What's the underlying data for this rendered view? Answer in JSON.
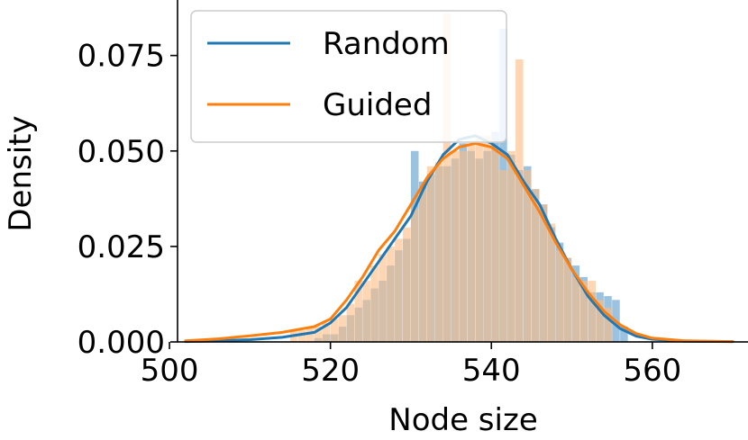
{
  "chart_data": {
    "type": "histogram+kde",
    "xlabel": "Node size",
    "ylabel": "Density",
    "xlim": [
      501,
      572
    ],
    "ylim": [
      0,
      0.09
    ],
    "xticks": [
      500,
      520,
      540,
      560
    ],
    "yticks": [
      0.0,
      0.025,
      0.05,
      0.075
    ],
    "xtick_labels": [
      "500",
      "520",
      "540",
      "560"
    ],
    "ytick_labels": [
      "0.000",
      "0.025",
      "0.050",
      "0.075"
    ],
    "legend": {
      "position": "top-left"
    },
    "bin_width": 1,
    "series": [
      {
        "name": "Random",
        "color": "#1f77b4",
        "hist_color": "#7aafd6",
        "bin_starts": [
          518,
          519,
          520,
          521,
          522,
          523,
          524,
          525,
          526,
          527,
          528,
          529,
          530,
          531,
          532,
          533,
          534,
          535,
          536,
          537,
          538,
          539,
          540,
          541,
          542,
          543,
          544,
          545,
          546,
          547,
          548,
          549,
          550,
          551,
          552,
          553,
          554,
          555,
          556
        ],
        "hist": [
          0.001,
          0.002,
          0.002,
          0.004,
          0.007,
          0.009,
          0.011,
          0.014,
          0.016,
          0.02,
          0.024,
          0.027,
          0.05,
          0.042,
          0.044,
          0.046,
          0.046,
          0.048,
          0.052,
          0.05,
          0.048,
          0.05,
          0.055,
          0.082,
          0.049,
          0.045,
          0.046,
          0.04,
          0.036,
          0.03,
          0.026,
          0.022,
          0.02,
          0.017,
          0.013,
          0.013,
          0.012,
          0.011,
          0.004
        ],
        "kde_x": [
          502,
          506,
          510,
          514,
          518,
          520,
          522,
          524,
          526,
          528,
          530,
          532,
          534,
          536,
          538,
          540,
          542,
          544,
          546,
          548,
          550,
          552,
          554,
          556,
          558,
          560,
          564,
          570
        ],
        "kde_y": [
          0.0001,
          0.0003,
          0.0006,
          0.0012,
          0.0025,
          0.005,
          0.009,
          0.015,
          0.021,
          0.027,
          0.033,
          0.042,
          0.049,
          0.053,
          0.054,
          0.052,
          0.049,
          0.042,
          0.036,
          0.027,
          0.019,
          0.012,
          0.007,
          0.0035,
          0.0015,
          0.0007,
          0.0002,
          0.0001
        ]
      },
      {
        "name": "Guided",
        "color": "#ff7f0e",
        "hist_color": "#ffbb80",
        "bin_starts": [
          515,
          516,
          517,
          518,
          519,
          520,
          521,
          522,
          523,
          524,
          525,
          526,
          527,
          528,
          529,
          530,
          531,
          532,
          533,
          534,
          535,
          536,
          537,
          538,
          539,
          540,
          541,
          542,
          543,
          544,
          545,
          546,
          547,
          548,
          549,
          550,
          551,
          552,
          553,
          554
        ],
        "hist": [
          0.003,
          0.003,
          0.004,
          0.004,
          0.005,
          0.006,
          0.007,
          0.01,
          0.016,
          0.016,
          0.02,
          0.023,
          0.025,
          0.027,
          0.03,
          0.035,
          0.04,
          0.046,
          0.047,
          0.086,
          0.05,
          0.05,
          0.052,
          0.054,
          0.054,
          0.051,
          0.045,
          0.05,
          0.074,
          0.045,
          0.04,
          0.036,
          0.031,
          0.024,
          0.022,
          0.017,
          0.016,
          0.016,
          0.011,
          0.009
        ],
        "kde_x": [
          502,
          506,
          510,
          514,
          518,
          520,
          522,
          524,
          526,
          528,
          530,
          532,
          534,
          536,
          538,
          540,
          542,
          544,
          546,
          548,
          550,
          552,
          554,
          556,
          558,
          560,
          564,
          570
        ],
        "kde_y": [
          0.0003,
          0.0008,
          0.0016,
          0.0025,
          0.004,
          0.006,
          0.011,
          0.017,
          0.024,
          0.029,
          0.036,
          0.043,
          0.048,
          0.051,
          0.052,
          0.051,
          0.048,
          0.041,
          0.034,
          0.026,
          0.019,
          0.013,
          0.008,
          0.0045,
          0.0022,
          0.001,
          0.0003,
          0.0001
        ]
      }
    ]
  }
}
